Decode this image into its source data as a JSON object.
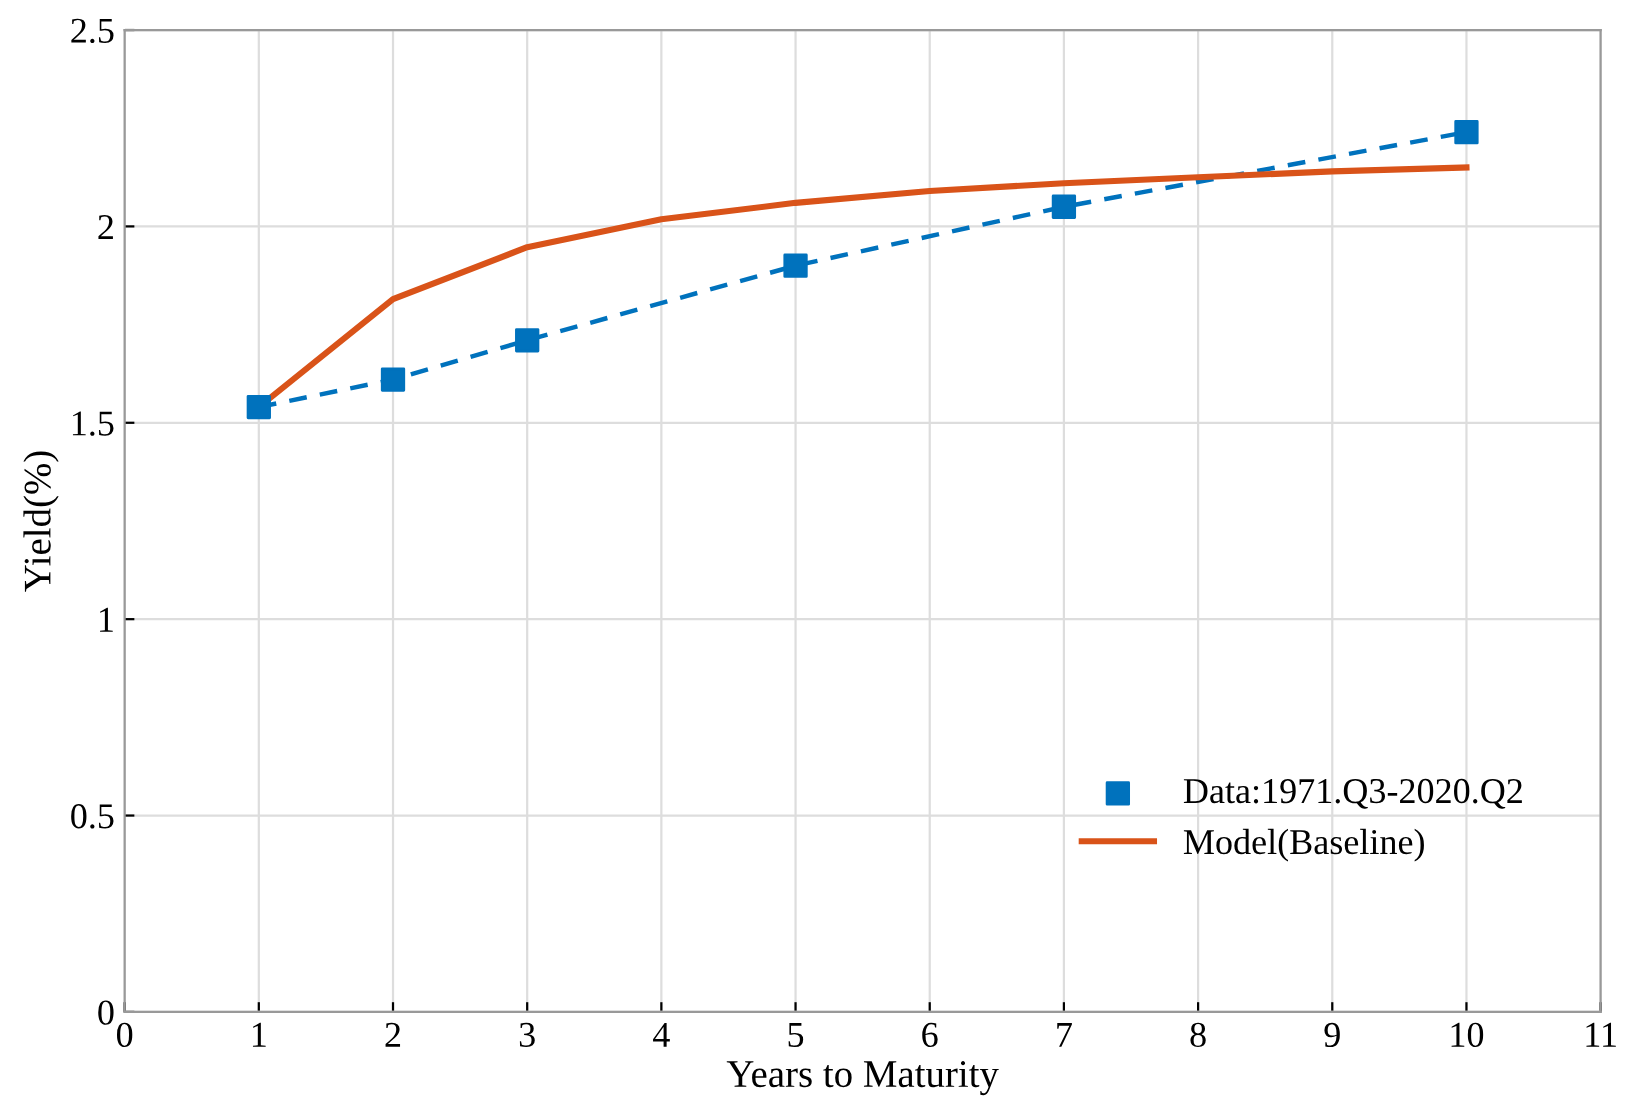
{
  "chart_data": {
    "type": "line",
    "xlabel": "Years to Maturity",
    "ylabel": "Yield(%)",
    "xlim": [
      0,
      11
    ],
    "xticks": [
      0,
      1,
      2,
      3,
      4,
      5,
      6,
      7,
      8,
      9,
      10,
      11
    ],
    "ylim": [
      0,
      2.5
    ],
    "yticks": [
      0,
      0.5,
      1,
      1.5,
      2,
      2.5
    ],
    "grid": true,
    "legend": "bottom right",
    "series": [
      {
        "type": "line",
        "color": "#0072bd",
        "line_style": "dashed",
        "marker": "none",
        "x": [
          1,
          2,
          3,
          5,
          7,
          10
        ],
        "values": [
          1.54,
          1.61,
          1.71,
          1.9,
          2.05,
          2.24
        ]
      },
      {
        "type": "scatter",
        "name": "Data:1971.Q3-2020.Q2",
        "color": "#0072bd",
        "marker": "square",
        "x": [
          1,
          2,
          3,
          5,
          7,
          10
        ],
        "values": [
          1.54,
          1.61,
          1.71,
          1.9,
          2.05,
          2.24
        ]
      },
      {
        "name": "Model(Baseline)",
        "color": "#d95319",
        "line_style": "solid",
        "marker": "none",
        "x": [
          1,
          2,
          3,
          4,
          5,
          6,
          7,
          8,
          9,
          10
        ],
        "values": [
          1.54,
          1.815,
          1.947,
          2.018,
          2.06,
          2.09,
          2.11,
          2.125,
          2.14,
          2.15
        ]
      }
    ]
  }
}
